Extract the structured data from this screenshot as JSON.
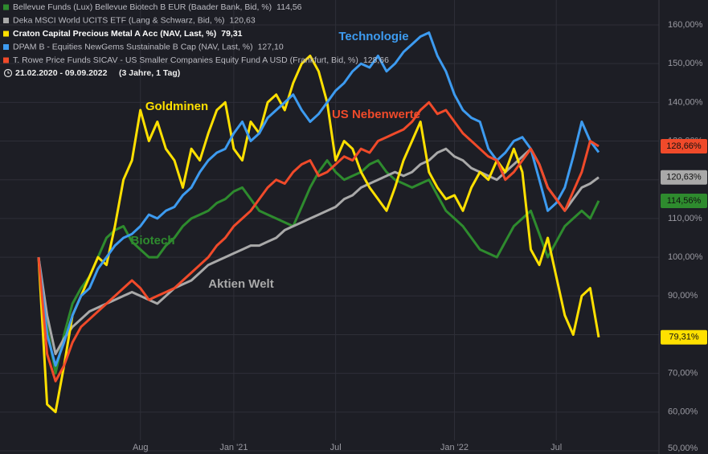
{
  "chart_data": {
    "type": "line",
    "date_range": "21.02.2020 - 09.09.2022",
    "date_span": "(3 Jahre, 1 Tag)",
    "categories": [
      null,
      null,
      null,
      null,
      null,
      null,
      null,
      null,
      null,
      null,
      null,
      null,
      "Aug",
      null,
      null,
      null,
      null,
      null,
      null,
      null,
      null,
      null,
      null,
      "Jan '21",
      null,
      null,
      null,
      null,
      null,
      null,
      null,
      null,
      null,
      null,
      null,
      "Jul",
      null,
      null,
      null,
      null,
      null,
      null,
      null,
      null,
      null,
      null,
      null,
      null,
      null,
      "Jan '22",
      null,
      null,
      null,
      null,
      null,
      null,
      null,
      null,
      null,
      null,
      null,
      "Jul",
      null,
      null,
      null,
      null,
      null
    ],
    "ylim": [
      50,
      160
    ],
    "yticks": [
      {
        "value": 50,
        "label": "50,00%"
      },
      {
        "value": 60,
        "label": "60,00%"
      },
      {
        "value": 70,
        "label": "70,00%"
      },
      {
        "value": 80,
        "label": "80,00%"
      },
      {
        "value": 90,
        "label": "90,00%"
      },
      {
        "value": 100,
        "label": "100,00%"
      },
      {
        "value": 110,
        "label": "110,00%"
      },
      {
        "value": 120,
        "label": "120,00%"
      },
      {
        "value": 130,
        "label": "130,00%"
      },
      {
        "value": 140,
        "label": "140,00%"
      },
      {
        "value": 150,
        "label": "150,00%"
      },
      {
        "value": 160,
        "label": "160,00%"
      }
    ],
    "grid": true,
    "annotations": [
      "Biotech",
      "Aktien Welt",
      "Goldminen",
      "Technologie",
      "US Nebenwerte"
    ],
    "series": [
      {
        "name": "Bellevue Funds (Lux) Bellevue Biotech B EUR (Baader Bank, Bid, %)",
        "legend_value": "114,56",
        "end_label": "114,56%",
        "color": "#2e8b2e",
        "values": [
          100,
          82,
          70,
          80,
          88,
          92,
          95,
          100,
          105,
          107,
          108,
          104,
          102,
          100,
          100,
          103,
          105,
          108,
          110,
          111,
          112,
          114,
          115,
          117,
          118,
          115,
          112,
          111,
          110,
          109,
          108,
          113,
          118,
          122,
          125,
          122,
          120,
          121,
          122,
          124,
          125,
          122,
          120,
          119,
          118,
          119,
          120,
          116,
          112,
          110,
          108,
          105,
          102,
          101,
          100,
          104,
          108,
          110,
          112,
          106,
          100,
          104,
          108,
          110,
          112,
          110,
          114.56
        ]
      },
      {
        "name": "Deka MSCI World UCITS ETF (Lang & Schwarz, Bid, %)",
        "legend_value": "120,63",
        "end_label": "120,63%",
        "color": "#a9a9a9",
        "values": [
          100,
          85,
          75,
          79,
          82,
          84,
          86,
          87,
          88,
          89,
          90,
          91,
          90,
          89,
          88,
          90,
          92,
          93,
          94,
          96,
          98,
          99,
          100,
          101,
          102,
          103,
          103,
          104,
          105,
          107,
          108,
          109,
          110,
          111,
          112,
          113,
          115,
          116,
          118,
          119,
          120,
          121,
          122,
          121,
          122,
          124,
          125,
          127,
          128,
          126,
          125,
          123,
          122,
          121,
          120,
          122,
          124,
          126,
          128,
          124,
          118,
          115,
          112,
          115,
          118,
          119,
          120.63
        ]
      },
      {
        "name": "Craton Capital Precious Metal A Acc (NAV, Last, %)",
        "legend_value": "79,31",
        "end_label": "79,31%",
        "color": "#ffe000",
        "values": [
          100,
          62,
          60,
          72,
          85,
          90,
          95,
          100,
          98,
          108,
          120,
          125,
          138,
          130,
          135,
          128,
          125,
          118,
          128,
          125,
          132,
          138,
          140,
          128,
          125,
          135,
          132,
          140,
          142,
          138,
          145,
          150,
          152,
          148,
          140,
          125,
          130,
          128,
          122,
          118,
          115,
          112,
          118,
          125,
          130,
          135,
          122,
          118,
          115,
          116,
          112,
          118,
          122,
          120,
          125,
          122,
          128,
          122,
          102,
          98,
          105,
          95,
          85,
          80,
          90,
          92,
          79.31
        ]
      },
      {
        "name": "DPAM B - Equities NewGems Sustainable B Cap (NAV, Last, %)",
        "legend_value": "127,10",
        "color": "#3d9bf0",
        "values": [
          100,
          80,
          72,
          78,
          85,
          90,
          92,
          97,
          100,
          103,
          105,
          106,
          108,
          111,
          110,
          112,
          113,
          116,
          118,
          122,
          125,
          127,
          128,
          132,
          135,
          130,
          132,
          136,
          138,
          140,
          142,
          138,
          135,
          137,
          140,
          143,
          145,
          148,
          150,
          149,
          152,
          148,
          150,
          153,
          155,
          157,
          158,
          152,
          148,
          142,
          138,
          136,
          135,
          128,
          125,
          127,
          130,
          131,
          128,
          120,
          112,
          114,
          118,
          126,
          135,
          130,
          127.1
        ]
      },
      {
        "name": "T. Rowe Price Funds SICAV - US Smaller Companies Equity Fund A USD (Frankfurt, Bid, %)",
        "legend_value": "128,66",
        "end_label": "128,66%",
        "color": "#f04a2a",
        "values": [
          100,
          75,
          68,
          72,
          78,
          82,
          84,
          86,
          88,
          90,
          92,
          94,
          92,
          89,
          90,
          91,
          92,
          94,
          96,
          98,
          100,
          103,
          105,
          108,
          110,
          112,
          115,
          118,
          120,
          119,
          122,
          124,
          125,
          121,
          122,
          124,
          126,
          125,
          128,
          127,
          130,
          131,
          132,
          133,
          135,
          138,
          140,
          137,
          138,
          135,
          132,
          130,
          128,
          126,
          125,
          120,
          122,
          125,
          128,
          124,
          118,
          115,
          112,
          117,
          122,
          130,
          128.66
        ]
      }
    ]
  }
}
